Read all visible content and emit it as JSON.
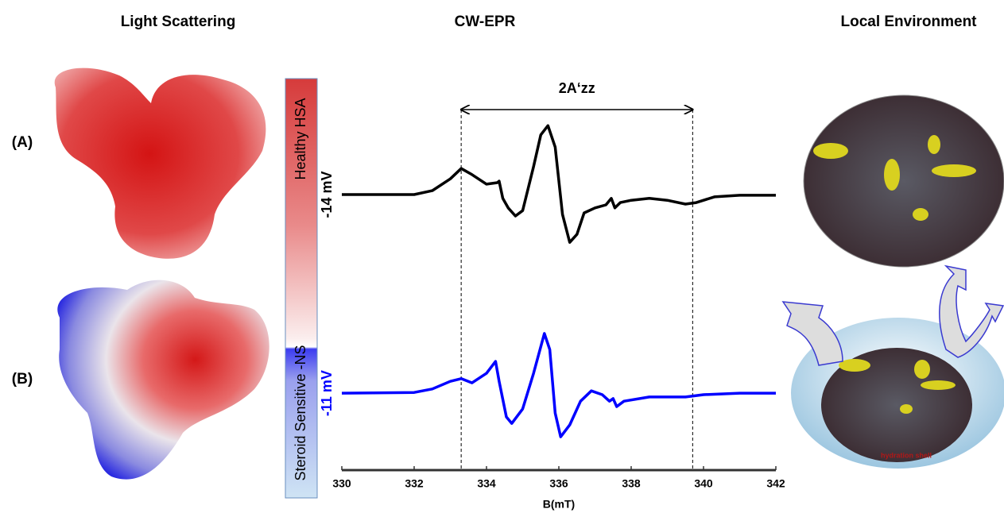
{
  "figure": {
    "panel_titles": [
      "Light Scattering",
      "CW-EPR",
      "Local Environment"
    ],
    "panel_labels": [
      "(A)",
      "(B)"
    ],
    "colorbar_labels": [
      "Healthy HSA",
      "Steroid Sensitive -NS"
    ],
    "hydration_label": "hydration shell"
  },
  "chart_data": {
    "type": "line",
    "xlabel": "B(mT)",
    "xlim": [
      330,
      342
    ],
    "xticks": [
      330,
      332,
      334,
      336,
      338,
      340,
      342
    ],
    "ylim": [
      0,
      10
    ],
    "annotation": {
      "text": "2A‘zz",
      "x": [
        333.3,
        339.7
      ]
    },
    "series": [
      {
        "name": "-14 mV",
        "color": "#000000",
        "x": [
          330,
          332,
          332.5,
          333,
          333.3,
          333.6,
          334,
          334.3,
          334.35,
          334.45,
          334.6,
          334.8,
          335,
          335.3,
          335.5,
          335.7,
          335.9,
          336.1,
          336.3,
          336.5,
          336.7,
          337,
          337.3,
          337.45,
          337.55,
          337.7,
          338,
          338.5,
          339,
          339.5,
          339.8,
          340.3,
          341,
          342
        ],
        "values": [
          7.2,
          7.2,
          7.3,
          7.61,
          7.88,
          7.72,
          7.47,
          7.51,
          7.55,
          7.1,
          6.85,
          6.64,
          6.78,
          7.93,
          8.76,
          9.0,
          8.44,
          6.68,
          5.95,
          6.16,
          6.72,
          6.85,
          6.93,
          7.1,
          6.85,
          6.99,
          7.05,
          7.1,
          7.05,
          6.95,
          6.99,
          7.14,
          7.18,
          7.18
        ]
      },
      {
        "name": "-11 mV",
        "color": "#0000ff",
        "x": [
          330,
          332,
          332.5,
          333,
          333.3,
          333.6,
          334,
          334.25,
          334.35,
          334.55,
          334.7,
          335,
          335.3,
          335.6,
          335.75,
          335.9,
          336.05,
          336.3,
          336.6,
          336.9,
          337.2,
          337.4,
          337.5,
          337.6,
          337.8,
          338.5,
          339.5,
          340,
          341,
          342
        ],
        "values": [
          2.01,
          2.03,
          2.12,
          2.32,
          2.39,
          2.28,
          2.53,
          2.84,
          2.32,
          1.39,
          1.22,
          1.6,
          2.53,
          3.57,
          3.15,
          1.49,
          0.87,
          1.18,
          1.8,
          2.07,
          1.97,
          1.8,
          1.87,
          1.66,
          1.8,
          1.91,
          1.91,
          1.97,
          2.01,
          2.01
        ]
      }
    ]
  }
}
